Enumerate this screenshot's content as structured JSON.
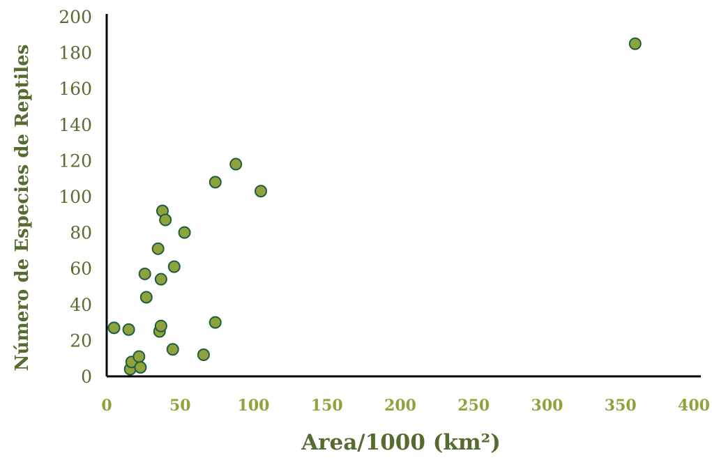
{
  "chart_data": {
    "type": "scatter",
    "title": "",
    "xlabel": "Area/1000 (km²)",
    "ylabel": "Número de Especies de Reptiles",
    "xlim": [
      0,
      400
    ],
    "ylim": [
      0,
      200
    ],
    "x_ticks": [
      "0",
      "50",
      "100",
      "150",
      "200",
      "250",
      "300",
      "350",
      "400"
    ],
    "y_ticks": [
      "0",
      "20",
      "40",
      "60",
      "80",
      "100",
      "120",
      "140",
      "160",
      "180",
      "200"
    ],
    "grid": false,
    "legend": "none",
    "points": [
      {
        "x": 5,
        "y": 27
      },
      {
        "x": 15,
        "y": 26
      },
      {
        "x": 16,
        "y": 4
      },
      {
        "x": 17,
        "y": 8
      },
      {
        "x": 22,
        "y": 11
      },
      {
        "x": 23,
        "y": 5
      },
      {
        "x": 26,
        "y": 57
      },
      {
        "x": 27,
        "y": 44
      },
      {
        "x": 35,
        "y": 71
      },
      {
        "x": 36,
        "y": 25
      },
      {
        "x": 37,
        "y": 28
      },
      {
        "x": 37,
        "y": 54
      },
      {
        "x": 38,
        "y": 92
      },
      {
        "x": 40,
        "y": 87
      },
      {
        "x": 45,
        "y": 15
      },
      {
        "x": 46,
        "y": 61
      },
      {
        "x": 53,
        "y": 80
      },
      {
        "x": 66,
        "y": 12
      },
      {
        "x": 74,
        "y": 30
      },
      {
        "x": 74,
        "y": 108
      },
      {
        "x": 88,
        "y": 118
      },
      {
        "x": 105,
        "y": 103
      },
      {
        "x": 360,
        "y": 185
      }
    ]
  },
  "colors": {
    "marker_fill": "#8ea33b",
    "marker_stroke": "#1f5c3f",
    "y_text": "#556b2f",
    "x_tick_text": "#8ea33b",
    "axis_line": "#000000"
  }
}
